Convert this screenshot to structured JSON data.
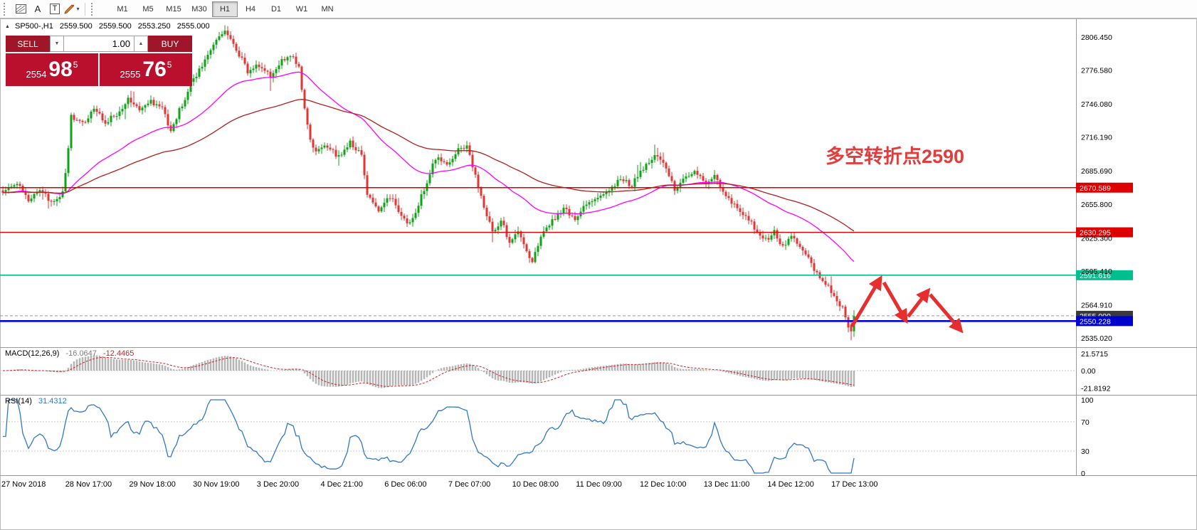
{
  "icons": {
    "collapse": "▲",
    "dropdown": "▼",
    "spin_up": "▲",
    "spin_down": "▼",
    "caret": "▾"
  },
  "toolbar": {
    "icon_a": "A",
    "icon_t": "T",
    "timeframes": [
      "M1",
      "M5",
      "M15",
      "M30",
      "H1",
      "H4",
      "D1",
      "W1",
      "MN"
    ],
    "active_timeframe": "H1"
  },
  "header": {
    "symbol": "SP500-,H1",
    "open": "2559.500",
    "high": "2559.500",
    "low": "2553.250",
    "close": "2555.000"
  },
  "trade_panel": {
    "sell_label": "SELL",
    "buy_label": "BUY",
    "volume": "1.00",
    "bid": {
      "big": "2554",
      "frac": "98",
      "sup": "5"
    },
    "ask": {
      "big": "2555",
      "frac": "76",
      "sup": "5"
    }
  },
  "annotation": {
    "text": "多空转折点2590",
    "color": "#e23d3d"
  },
  "indicators": {
    "macd": {
      "label": "MACD(12,26,9)",
      "value_main": "-16.0647",
      "value_signal": "-12.4465",
      "axis": [
        "21.5715",
        "0.00",
        "-21.8192"
      ]
    },
    "rsi": {
      "label": "RSI(14)",
      "value": "31.4312",
      "axis": [
        "100",
        "70",
        "30",
        "0"
      ]
    }
  },
  "price_axis": {
    "plain_labels": [
      2806.45,
      2776.58,
      2746.08,
      2716.19,
      2685.69,
      2655.8,
      2625.3,
      2595.41,
      2564.91,
      2535.02
    ]
  },
  "time_axis": [
    "27 Nov 2018",
    "28 Nov 17:00",
    "29 Nov 18:00",
    "30 Nov 19:00",
    "3 Dec 20:00",
    "4 Dec 21:00",
    "6 Dec 06:00",
    "7 Dec 07:00",
    "10 Dec 08:00",
    "11 Dec 09:00",
    "12 Dec 10:00",
    "13 Dec 11:00",
    "14 Dec 12:00",
    "17 Dec 13:00"
  ],
  "chart_data": {
    "type": "candlestick",
    "title": "SP500-,H1",
    "symbol": "SP500-",
    "timeframe": "H1",
    "price_range": [
      2528,
      2818
    ],
    "num_candles": 300,
    "up_color": "#0fa318",
    "down_color": "#e23535",
    "close_waypoints": [
      [
        0,
        2668
      ],
      [
        5,
        2674
      ],
      [
        9,
        2660
      ],
      [
        13,
        2668
      ],
      [
        17,
        2658
      ],
      [
        21,
        2666
      ],
      [
        23,
        2704
      ],
      [
        24,
        2736
      ],
      [
        28,
        2728
      ],
      [
        32,
        2742
      ],
      [
        36,
        2730
      ],
      [
        40,
        2736
      ],
      [
        44,
        2752
      ],
      [
        48,
        2741
      ],
      [
        52,
        2748
      ],
      [
        56,
        2742
      ],
      [
        59,
        2720
      ],
      [
        62,
        2740
      ],
      [
        66,
        2764
      ],
      [
        70,
        2782
      ],
      [
        74,
        2801
      ],
      [
        78,
        2813
      ],
      [
        80,
        2806
      ],
      [
        83,
        2791
      ],
      [
        86,
        2776
      ],
      [
        90,
        2781
      ],
      [
        94,
        2772
      ],
      [
        98,
        2786
      ],
      [
        102,
        2789
      ],
      [
        104,
        2779
      ],
      [
        106,
        2742
      ],
      [
        108,
        2713
      ],
      [
        110,
        2701
      ],
      [
        114,
        2709
      ],
      [
        118,
        2698
      ],
      [
        122,
        2712
      ],
      [
        126,
        2701
      ],
      [
        128,
        2663
      ],
      [
        132,
        2650
      ],
      [
        136,
        2663
      ],
      [
        140,
        2645
      ],
      [
        143,
        2637
      ],
      [
        146,
        2656
      ],
      [
        149,
        2677
      ],
      [
        152,
        2697
      ],
      [
        156,
        2692
      ],
      [
        160,
        2705
      ],
      [
        163,
        2709
      ],
      [
        166,
        2681
      ],
      [
        169,
        2651
      ],
      [
        172,
        2631
      ],
      [
        175,
        2641
      ],
      [
        178,
        2621
      ],
      [
        181,
        2633
      ],
      [
        184,
        2611
      ],
      [
        186,
        2604
      ],
      [
        189,
        2627
      ],
      [
        193,
        2641
      ],
      [
        197,
        2651
      ],
      [
        201,
        2643
      ],
      [
        205,
        2655
      ],
      [
        209,
        2661
      ],
      [
        213,
        2669
      ],
      [
        217,
        2679
      ],
      [
        221,
        2673
      ],
      [
        225,
        2689
      ],
      [
        229,
        2701
      ],
      [
        232,
        2693
      ],
      [
        236,
        2669
      ],
      [
        240,
        2679
      ],
      [
        243,
        2685
      ],
      [
        247,
        2673
      ],
      [
        250,
        2681
      ],
      [
        253,
        2667
      ],
      [
        256,
        2657
      ],
      [
        259,
        2649
      ],
      [
        262,
        2643
      ],
      [
        265,
        2631
      ],
      [
        268,
        2623
      ],
      [
        271,
        2631
      ],
      [
        274,
        2617
      ],
      [
        277,
        2629
      ],
      [
        280,
        2619
      ],
      [
        283,
        2607
      ],
      [
        286,
        2593
      ],
      [
        289,
        2585
      ],
      [
        291,
        2577
      ],
      [
        293,
        2569
      ],
      [
        295,
        2561
      ],
      [
        297,
        2545
      ],
      [
        298,
        2539
      ],
      [
        299,
        2555
      ]
    ],
    "moving_averages": [
      {
        "name": "fast-ma",
        "period": 45,
        "color": "#ff00ff"
      },
      {
        "name": "slow-ma",
        "period": 100,
        "color": "#b02020"
      }
    ],
    "levels": [
      {
        "price": 2670.589,
        "color": "#dd0000",
        "width": 1.4,
        "label": "2670.589",
        "tag_bg": "#dd0000"
      },
      {
        "price": 2630.295,
        "color": "#dd0000",
        "width": 1.4,
        "label": "2630.295",
        "tag_bg": "#dd0000"
      },
      {
        "price": 2591.616,
        "color": "#00bf8f",
        "width": 1.6,
        "label": "2591.616",
        "tag_bg": "#00bf8f"
      },
      {
        "price": 2555.0,
        "color": "#999999",
        "width": 1,
        "dash": "4,3",
        "label": "2555.000",
        "tag_bg": "#3a3a3a"
      },
      {
        "price": 2550.228,
        "color": "#0000dd",
        "width": 2.6,
        "label": "2550.228",
        "tag_bg": "#0000cd"
      }
    ],
    "arrows": {
      "color": "#e62e2e",
      "width": 5,
      "segments": [
        [
          1197,
          459,
          1236,
          393
        ],
        [
          1242,
          397,
          1272,
          449
        ],
        [
          1276,
          445,
          1303,
          410
        ],
        [
          1307,
          414,
          1349,
          463
        ]
      ]
    },
    "macd": {
      "fast": 12,
      "slow": 26,
      "signal_period": 9,
      "hist_color": "#b5b5b5",
      "signal_color": "#cc2222",
      "axis_max": 21.5715,
      "axis_min": -21.8192
    },
    "rsi": {
      "period": 14,
      "color": "#2f78c8",
      "levels": [
        70,
        30
      ],
      "axis": [
        0,
        100
      ]
    }
  }
}
